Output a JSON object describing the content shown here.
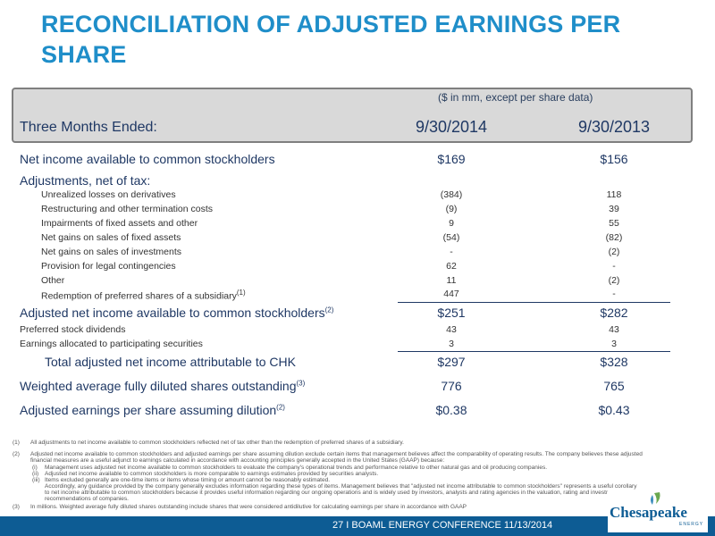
{
  "title": "RECONCILIATION OF ADJUSTED EARNINGS PER SHARE",
  "header": {
    "unit_note": "($ in mm, except per share data)",
    "label": "Three Months Ended:",
    "col1": "9/30/2014",
    "col2": "9/30/2013"
  },
  "rows": [
    {
      "label": "Net income available to common stockholders",
      "v1": "$169",
      "v2": "$156"
    },
    {
      "label": "Adjustments, net of tax:",
      "v1": "",
      "v2": ""
    },
    {
      "label": "Unrealized losses on derivatives",
      "v1": "(384)",
      "v2": "118"
    },
    {
      "label": "Restructuring and other termination costs",
      "v1": "(9)",
      "v2": "39"
    },
    {
      "label": "Impairments of fixed assets and other",
      "v1": "9",
      "v2": "55"
    },
    {
      "label": "Net gains on sales of fixed assets",
      "v1": "(54)",
      "v2": "(82)"
    },
    {
      "label": "Net gains on sales of investments",
      "v1": "-",
      "v2": "(2)"
    },
    {
      "label": "Provision for legal contingencies",
      "v1": "62",
      "v2": "-"
    },
    {
      "label": "Other",
      "v1": "11",
      "v2": "(2)"
    },
    {
      "label": "Redemption of preferred shares of a subsidiary",
      "sup": "(1)",
      "v1": "447",
      "v2": "-"
    },
    {
      "label": "Adjusted net income available to common stockholders",
      "sup": "(2)",
      "v1": "$251",
      "v2": "$282"
    },
    {
      "label": "Preferred stock dividends",
      "v1": "43",
      "v2": "43"
    },
    {
      "label": "Earnings allocated to participating securities",
      "v1": "3",
      "v2": "3"
    },
    {
      "label": "Total adjusted net income attributable to CHK",
      "v1": "$297",
      "v2": "$328"
    },
    {
      "label": "Weighted average fully diluted shares outstanding",
      "sup": "(3)",
      "v1": "776",
      "v2": "765"
    },
    {
      "label": "Adjusted earnings per share assuming dilution",
      "sup": "(2)",
      "v1": "$0.38",
      "v2": "$0.43"
    }
  ],
  "footnotes": {
    "fn1_num": "(1)",
    "fn1": "All adjustments to net income available to common stockholders reflected net of tax other than the redemption of preferred shares of a subsidiary.",
    "fn2_num": "(2)",
    "fn2": "Adjusted net income available to common stockholders and adjusted earnings per share assuming dilution exclude certain items that management believes affect the comparability of operating results. The company believes these adjusted financial measures are a useful adjunct to earnings calculated in accordance with accounting principles generally accepted in the United States (GAAP) because:",
    "fn2_i_num": "(i)",
    "fn2_i": "Management uses adjusted net income available to common stockholders to evaluate the company's operational trends and performance relative to other natural gas and oil producing companies.",
    "fn2_ii_num": "(ii)",
    "fn2_ii": "Adjusted net income available to common stockholders is more comparable to earnings estimates provided by securities analysts.",
    "fn2_iii_num": "(iii)",
    "fn2_iii": "Items excluded generally are one-time items or items whose timing or amount cannot be reasonably estimated.",
    "fn2_cont": "Accordingly, any guidance provided by the company generally excludes information regarding these types of items. Management believes that \"adjusted net income attributable to common stockholders\" represents a useful corollary to net income attributable to common stockholders because it provides useful information regarding our ongoing operations and is widely used by investors, analysts and rating agencies in the valuation, rating and investment recommendations of companies.",
    "fn3_num": "(3)",
    "fn3": "In millions. Weighted average fully diluted shares outstanding include shares that were considered antidilutive for calculating earnings per share in accordance with GAAP"
  },
  "footer": {
    "text": "27   I   BOAML ENERGY CONFERENCE  11/13/2014",
    "logo": "Chesapeake",
    "logo_sub": "ENERGY"
  },
  "colors": {
    "title": "#1f8ec9",
    "text": "#1f3864",
    "footer_bar": "#0d5c94",
    "header_box": "#d9d9d9"
  }
}
